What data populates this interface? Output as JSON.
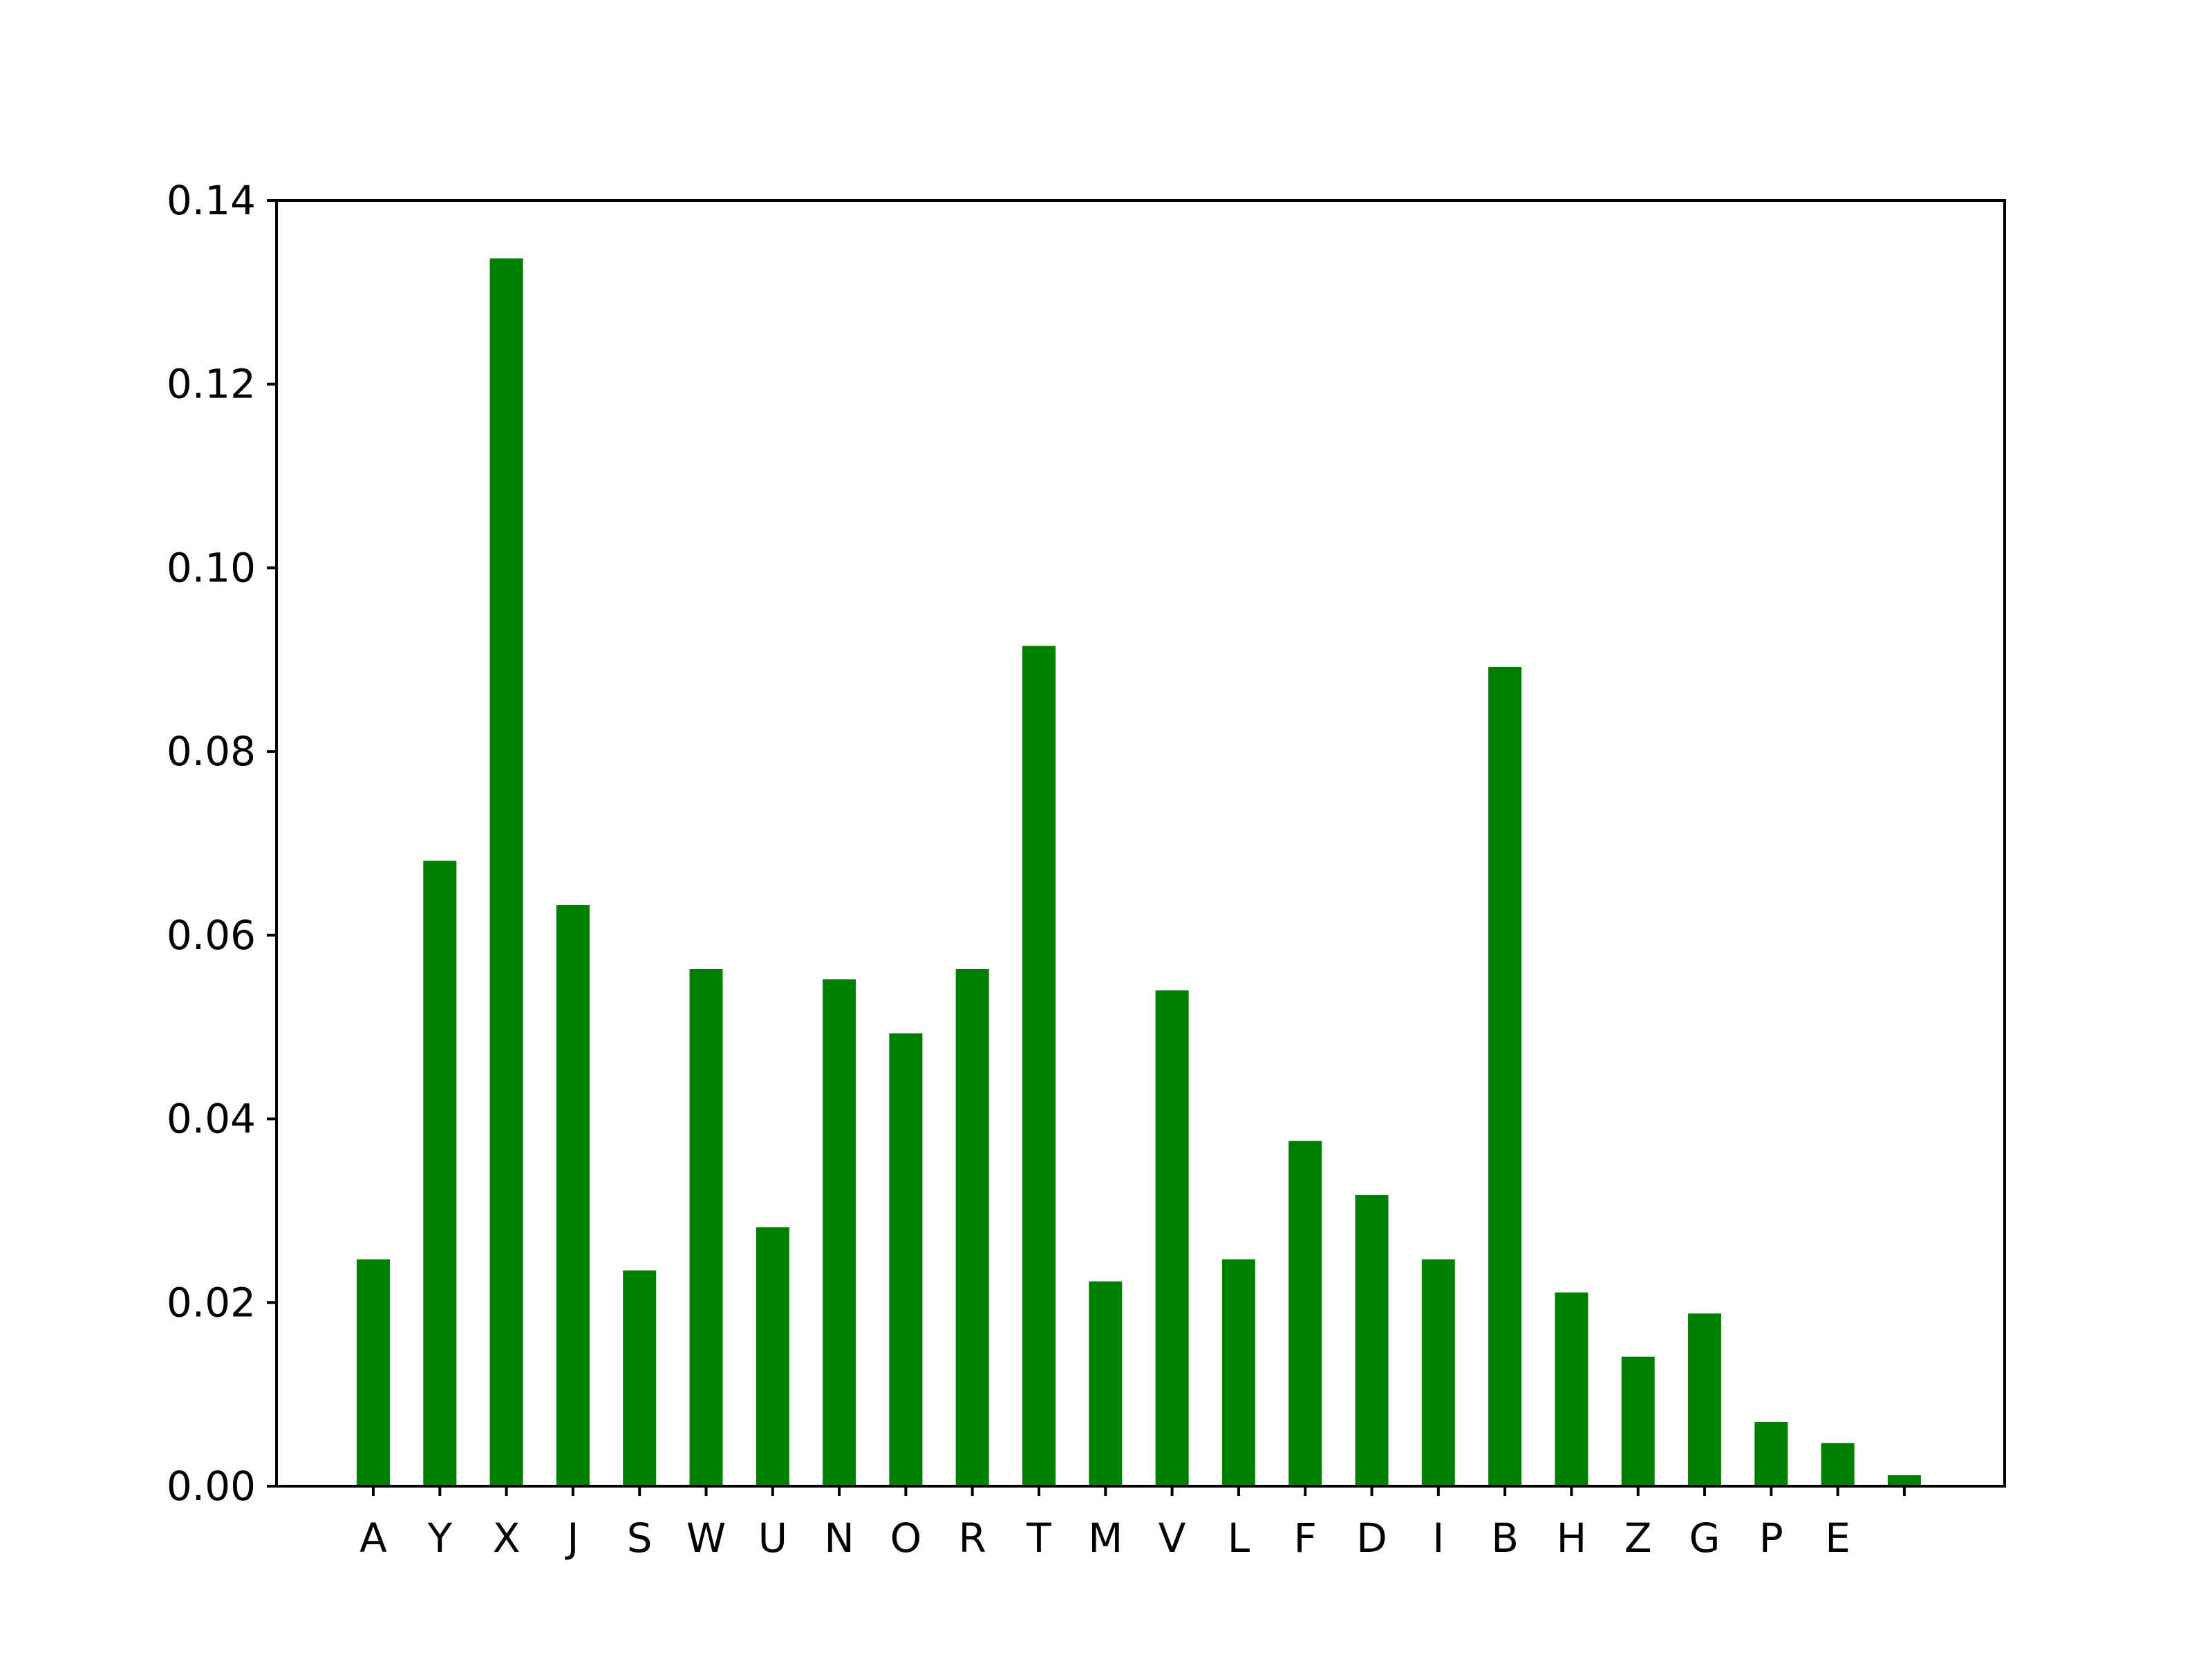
{
  "chart_data": {
    "type": "bar",
    "categories": [
      "A",
      "Y",
      "X",
      "J",
      "S",
      "W",
      "U",
      "N",
      "O",
      "R",
      "T",
      "M",
      "V",
      "L",
      "F",
      "D",
      "I",
      "B",
      "H",
      "Z",
      "G",
      "P",
      "E",
      ""
    ],
    "values": [
      0.0247,
      0.0681,
      0.1337,
      0.0633,
      0.0235,
      0.0563,
      0.0282,
      0.0552,
      0.0493,
      0.0563,
      0.0915,
      0.0223,
      0.054,
      0.0247,
      0.0376,
      0.0317,
      0.0247,
      0.0892,
      0.0211,
      0.0141,
      0.0188,
      0.007,
      0.0047,
      0.0012
    ],
    "title": "",
    "xlabel": "",
    "ylabel": "",
    "ylim": [
      0,
      0.14
    ],
    "yticks": [
      0.0,
      0.02,
      0.04,
      0.06,
      0.08,
      0.1,
      0.12,
      0.14
    ],
    "ytick_labels": [
      "0.00",
      "0.02",
      "0.04",
      "0.06",
      "0.08",
      "0.10",
      "0.12",
      "0.14"
    ],
    "bar_color": "#008000",
    "grid": false,
    "legend": "none"
  }
}
